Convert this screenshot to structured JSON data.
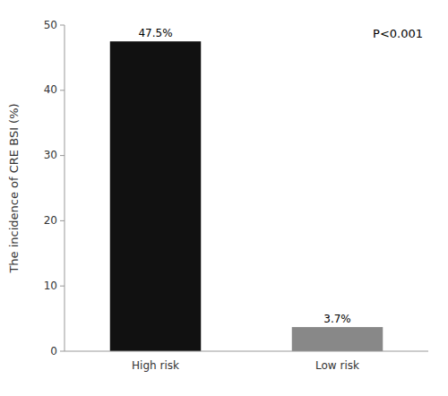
{
  "chart_data": {
    "type": "bar",
    "categories": [
      "High risk",
      "Low risk"
    ],
    "values": [
      47.5,
      3.7
    ],
    "value_labels": [
      "47.5%",
      "3.7%"
    ],
    "colors": [
      "#111111",
      "#888888"
    ],
    "ylabel": "The incidence of CRE BSI (%)",
    "ylim": [
      0,
      50
    ],
    "yticks": [
      0,
      10,
      20,
      30,
      40,
      50
    ],
    "annotation": "P<0.001",
    "data_labels": true,
    "grid": false
  }
}
